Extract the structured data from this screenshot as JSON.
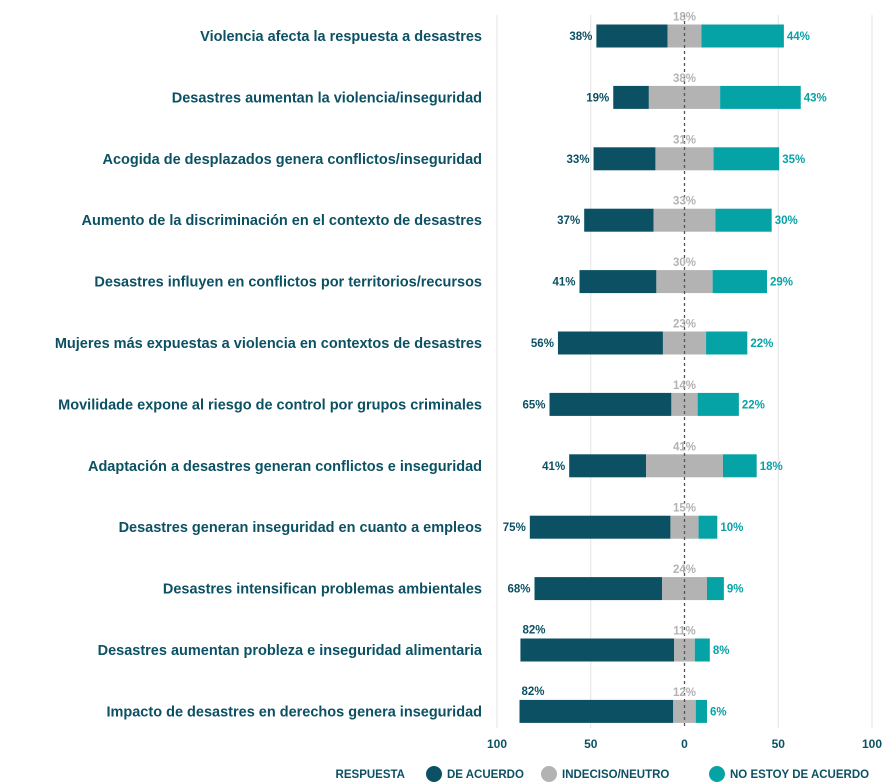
{
  "chart_data": {
    "type": "bar",
    "orientation": "horizontal",
    "stacking": "diverging",
    "categories": [
      "Violencia afecta la respuesta a desastres",
      "Desastres aumentan la violencia/inseguridad",
      "Acogida de desplazados genera conflictos/inseguridad",
      "Aumento de la discriminación en el contexto de desastres",
      "Desastres influyen en conflictos por territorios/recursos",
      "Mujeres más expuestas a violencia en contextos de desastres",
      "Movilidade expone al riesgo de control por grupos criminales",
      "Adaptación a desastres generan conflictos e inseguridad",
      "Desastres generan inseguridad en cuanto a empleos",
      "Desastres intensifican problemas ambientales",
      "Desastres aumentan probleza e inseguridad alimentaria",
      "Impacto de desastres en derechos genera inseguridad"
    ],
    "series": [
      {
        "name": "DE ACUERDO",
        "color": "#0b5163",
        "values": [
          38,
          19,
          33,
          37,
          41,
          56,
          65,
          41,
          75,
          68,
          82,
          82
        ],
        "labels": [
          "38%",
          "19%",
          "33%",
          "37%",
          "41%",
          "56%",
          "65%",
          "41%",
          "75%",
          "68%",
          "82%",
          "82%"
        ]
      },
      {
        "name": "INDECISO/NEUTRO",
        "color": "#b3b3b3",
        "values": [
          18,
          38,
          31,
          33,
          30,
          23,
          14,
          41,
          15,
          24,
          11,
          12
        ],
        "labels": [
          "18%",
          "38%",
          "31%",
          "33%",
          "30%",
          "23%",
          "14%",
          "41%",
          "15%",
          "24%",
          "11%",
          "12%"
        ]
      },
      {
        "name": "NO ESTOY DE ACUERDO",
        "color": "#06a3a6",
        "values": [
          44,
          43,
          35,
          30,
          29,
          22,
          22,
          18,
          10,
          9,
          8,
          6
        ],
        "labels": [
          "44%",
          "43%",
          "35%",
          "30%",
          "29%",
          "22%",
          "22%",
          "18%",
          "10%",
          "9%",
          "8%",
          "6%"
        ]
      }
    ],
    "x_axis": {
      "range": [
        -100,
        100
      ],
      "ticks": [
        -100,
        -50,
        0,
        50,
        100
      ],
      "tick_labels": [
        "100",
        "50",
        "0",
        "50",
        "100"
      ]
    },
    "grid": true,
    "legend": {
      "title": "RESPUESTA",
      "position": "bottom",
      "entries": [
        "DE ACUERDO",
        "INDECISO/NEUTRO",
        "NO ESTOY DE ACUERDO"
      ]
    }
  }
}
